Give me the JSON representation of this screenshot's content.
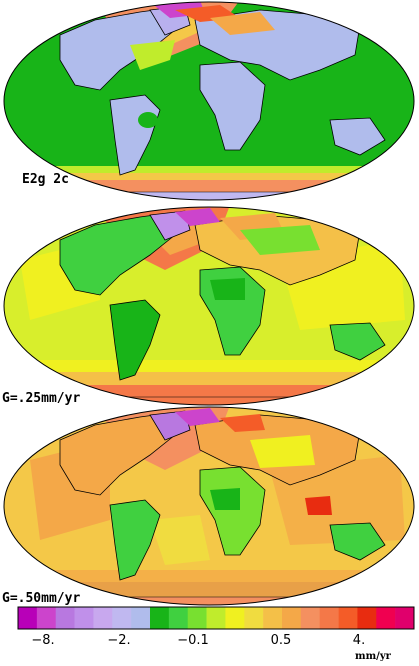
{
  "colors": {
    "scale": [
      "#b800b8",
      "#cc44cc",
      "#b878e0",
      "#c090ea",
      "#c8a8ee",
      "#c0b8f0",
      "#b0bcec",
      "#18b418",
      "#40d040",
      "#78e030",
      "#c0ec2c",
      "#f0f020",
      "#f0dc40",
      "#f4c048",
      "#f4a848",
      "#f49060",
      "#f47848",
      "#f45c28",
      "#e82c10",
      "#f00050",
      "#e0006c"
    ],
    "ocean": [
      "#18b418",
      "#d8ee2c",
      "#f4c848"
    ],
    "land": [
      "#b0bcec",
      "#40d040",
      "#f4a848"
    ],
    "high_latitude_band": [
      "#f49060",
      "#f47848",
      "#e8a048"
    ]
  },
  "panels": [
    {
      "label": "E2g 2c"
    },
    {
      "label": "G=.25mm/yr"
    },
    {
      "label": "G=.50mm/yr"
    }
  ],
  "colorbar": {
    "tick_labels": [
      "−8.",
      "−2.",
      "−0.1",
      "0.5",
      "4."
    ],
    "units": "mm/yr"
  }
}
